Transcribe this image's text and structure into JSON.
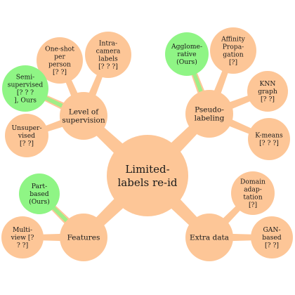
{
  "colors": {
    "node": "#fdc697",
    "node_ours": "#8ff585",
    "link": "#fdc697"
  },
  "root": {
    "lines": [
      "Limited-",
      "labels re-id"
    ]
  },
  "categories": [
    {
      "id": "level-of-supervision",
      "lines": [
        "Level of",
        "supervision"
      ],
      "children": [
        {
          "id": "one-shot",
          "lines": [
            "One-shot",
            "per",
            "person",
            "[? ?]"
          ],
          "ours": false
        },
        {
          "id": "intra-camera",
          "lines": [
            "Intra-",
            "camera",
            "labels",
            "[? ? ?]"
          ],
          "ours": false
        },
        {
          "id": "semi-supervised",
          "lines": [
            "Semi-",
            "supervised",
            "[? ? ?",
            "], Ours"
          ],
          "ours": true
        },
        {
          "id": "unsupervised",
          "lines": [
            "Unsuper-",
            "vised",
            "[? ?]"
          ],
          "ours": false
        }
      ]
    },
    {
      "id": "pseudo-labeling",
      "lines": [
        "Pseudo-",
        "labeling"
      ],
      "children": [
        {
          "id": "agglomerative",
          "lines": [
            "Agglome-",
            "rative",
            "(Ours)"
          ],
          "ours": true
        },
        {
          "id": "affinity-propagation",
          "lines": [
            "Affinity",
            "Propa-",
            "gation",
            "[?]"
          ],
          "ours": false
        },
        {
          "id": "knn-graph",
          "lines": [
            "KNN",
            "graph",
            "[? ?]"
          ],
          "ours": false
        },
        {
          "id": "k-means",
          "lines": [
            "K-means",
            "[? ? ?]"
          ],
          "ours": false
        }
      ]
    },
    {
      "id": "features",
      "lines": [
        "Features"
      ],
      "children": [
        {
          "id": "part-based",
          "lines": [
            "Part-",
            "based",
            "(Ours)"
          ],
          "ours": true
        },
        {
          "id": "multi-view",
          "lines": [
            "Multi-",
            "view [?",
            "? ?]"
          ],
          "ours": false
        }
      ]
    },
    {
      "id": "extra-data",
      "lines": [
        "Extra data"
      ],
      "children": [
        {
          "id": "domain-adaptation",
          "lines": [
            "Domain",
            "adap-",
            "tation",
            "[?]"
          ],
          "ours": false
        },
        {
          "id": "gan-based",
          "lines": [
            "GAN-",
            "based",
            "[? ?]"
          ],
          "ours": false
        }
      ]
    }
  ]
}
